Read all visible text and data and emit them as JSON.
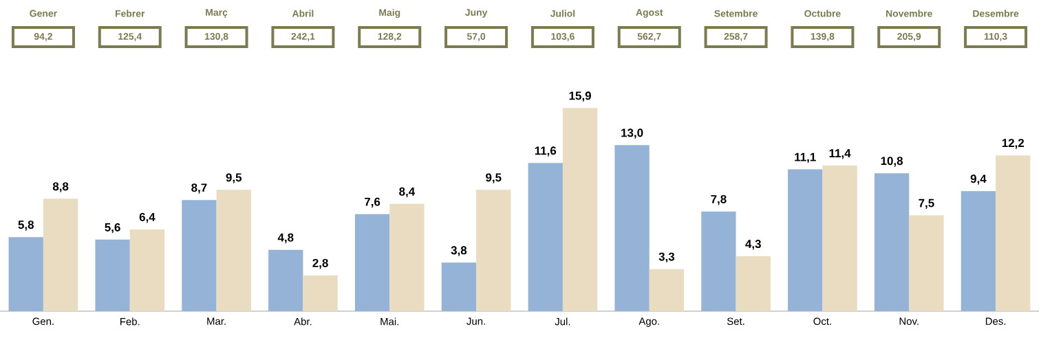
{
  "chart_data": [
    {
      "type": "other",
      "color": "#7b7b4f",
      "categories": [
        "Gener",
        "Febrer",
        "Març",
        "Abril",
        "Maig",
        "Juny",
        "Juliol",
        "Agost",
        "Setembre",
        "Octubre",
        "Novembre",
        "Desembre"
      ],
      "value_labels": [
        "94,2",
        "125,4",
        "130,8",
        "242,1",
        "128,2",
        "57,0",
        "103,6",
        "562,7",
        "258,7",
        "139,8",
        "205,9",
        "110,3"
      ]
    },
    {
      "type": "bar",
      "categories": [
        "Gen.",
        "Feb.",
        "Mar.",
        "Abr.",
        "Mai.",
        "Jun.",
        "Jul.",
        "Ago.",
        "Set.",
        "Oct.",
        "Nov.",
        "Des."
      ],
      "series": [
        {
          "color": "#95b3d7",
          "values": [
            5.8,
            5.6,
            8.7,
            4.8,
            7.6,
            3.8,
            11.6,
            13.0,
            7.8,
            11.1,
            10.8,
            9.4
          ],
          "value_labels": [
            "5,8",
            "5,6",
            "8,7",
            "4,8",
            "7,6",
            "3,8",
            "11,6",
            "13,0",
            "7,8",
            "11,1",
            "10,8",
            "9,4"
          ]
        },
        {
          "color": "#eadcc0",
          "values": [
            8.8,
            6.4,
            9.5,
            2.8,
            8.4,
            9.5,
            15.9,
            3.3,
            4.3,
            11.4,
            7.5,
            12.2
          ],
          "value_labels": [
            "8,8",
            "6,4",
            "9,5",
            "2,8",
            "8,4",
            "9,5",
            "15,9",
            "3,3",
            "4,3",
            "11,4",
            "7,5",
            "12,2"
          ]
        }
      ]
    }
  ]
}
